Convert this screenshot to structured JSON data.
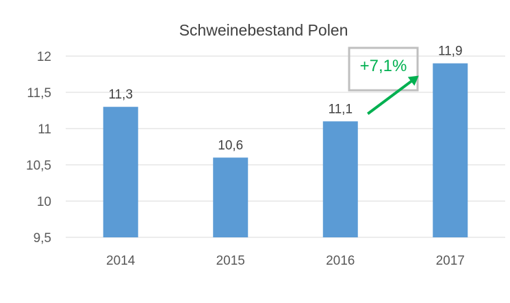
{
  "chart_data": {
    "type": "bar",
    "title": "Schweinebestand Polen",
    "categories": [
      "2014",
      "2015",
      "2016",
      "2017"
    ],
    "values": [
      11.3,
      10.6,
      11.1,
      11.9
    ],
    "value_labels": [
      "11,3",
      "10,6",
      "11,1",
      "11,9"
    ],
    "ylim": [
      9.5,
      12
    ],
    "yticks": [
      9.5,
      10,
      10.5,
      11,
      11.5,
      12
    ],
    "ytick_labels": [
      "9,5",
      "10",
      "10,5",
      "11",
      "11,5",
      "12"
    ],
    "grid": true,
    "legend": "none",
    "annotation": {
      "text": "+7,1%",
      "from_category": "2016",
      "to_category": "2017"
    }
  },
  "colors": {
    "bar": "#5B9BD5",
    "grid": "#D9D9D9",
    "annotation": "#00B050",
    "annotation_box": "#BFBFBF"
  }
}
